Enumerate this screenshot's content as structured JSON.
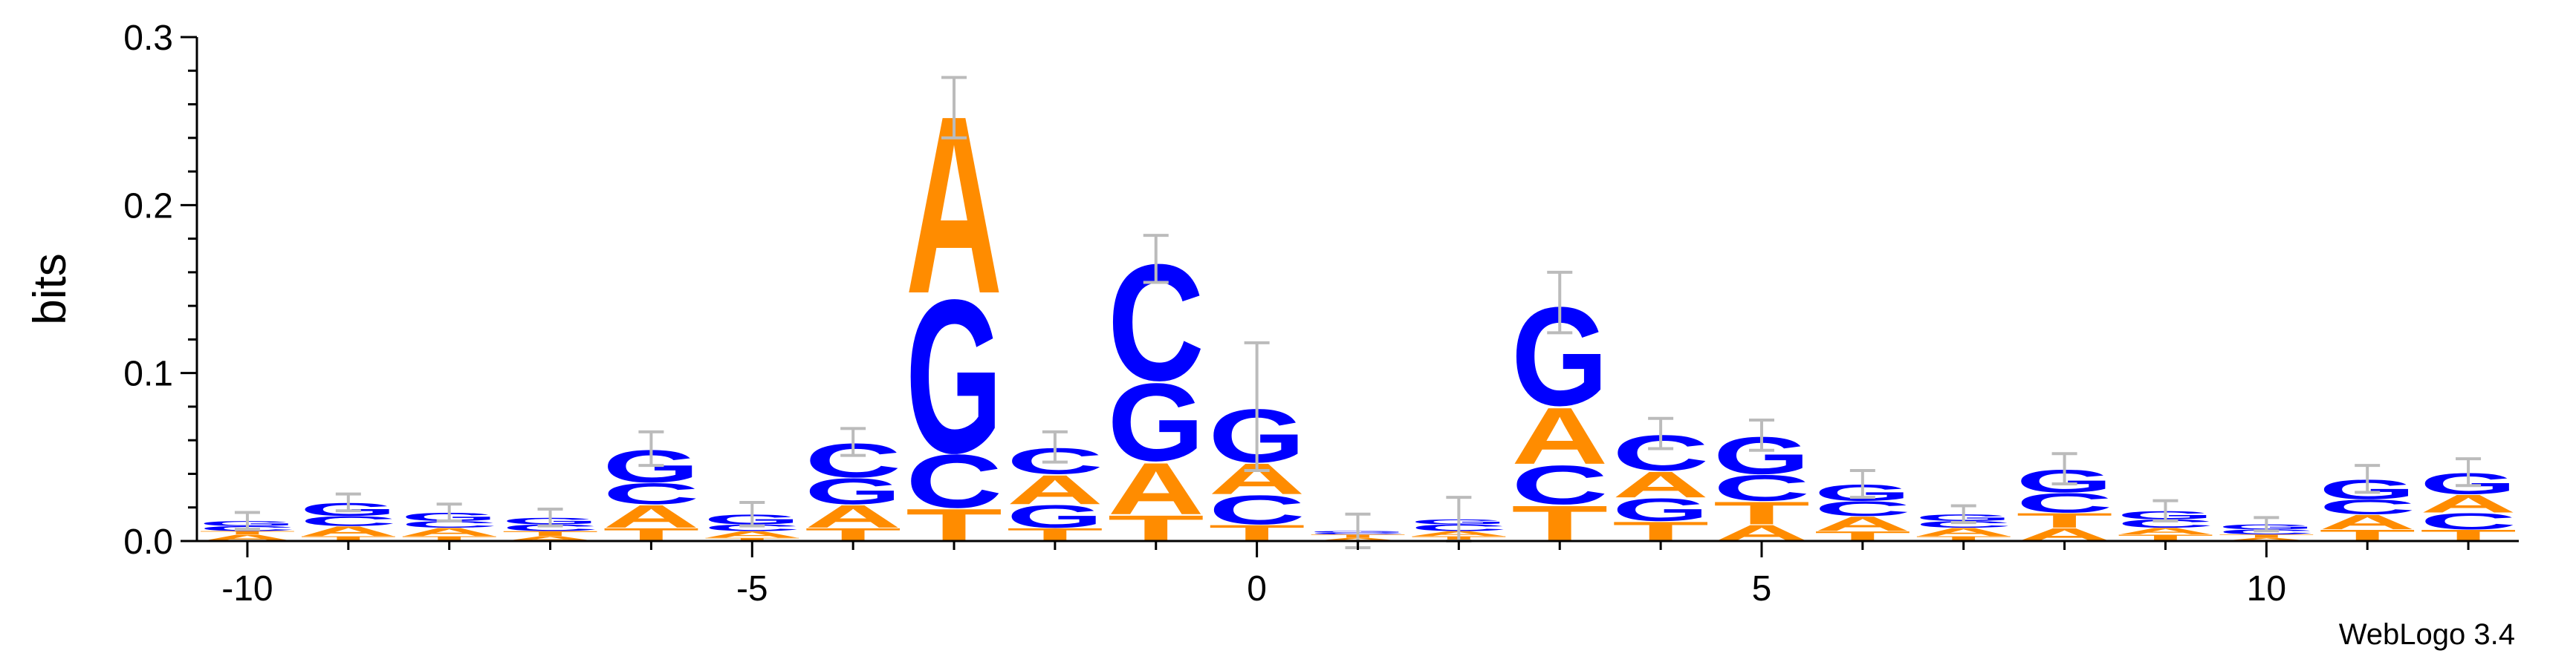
{
  "chart_data": {
    "type": "sequence-logo",
    "ylabel": "bits",
    "credit": "WebLogo 3.4",
    "ylim": [
      0,
      0.3
    ],
    "yticks": [
      0.0,
      0.1,
      0.2,
      0.3
    ],
    "ytick_labels": [
      "0.0",
      "0.1",
      "0.2",
      "0.3"
    ],
    "xlim": [
      -10.5,
      12.5
    ],
    "xticks": [
      -10,
      -5,
      0,
      5,
      10
    ],
    "xtick_labels": [
      "-10",
      "-5",
      "0",
      "5",
      "10"
    ],
    "colors": {
      "A": "#ff8c00",
      "T": "#ff8c00",
      "C": "#0000ff",
      "G": "#0000ff",
      "errorbar": "#bbbbbb",
      "axis": "#000000"
    },
    "positions": [
      {
        "x": -10,
        "stack": [
          [
            "A",
            0.004
          ],
          [
            "T",
            0.002
          ],
          [
            "C",
            0.003
          ],
          [
            "G",
            0.003
          ]
        ],
        "err": 0.005
      },
      {
        "x": -9,
        "stack": [
          [
            "T",
            0.003
          ],
          [
            "A",
            0.006
          ],
          [
            "C",
            0.006
          ],
          [
            "G",
            0.008
          ]
        ],
        "err": 0.005
      },
      {
        "x": -8,
        "stack": [
          [
            "T",
            0.003
          ],
          [
            "A",
            0.005
          ],
          [
            "C",
            0.004
          ],
          [
            "G",
            0.005
          ]
        ],
        "err": 0.005
      },
      {
        "x": -7,
        "stack": [
          [
            "A",
            0.003
          ],
          [
            "T",
            0.003
          ],
          [
            "C",
            0.004
          ],
          [
            "G",
            0.004
          ]
        ],
        "err": 0.005
      },
      {
        "x": -6,
        "stack": [
          [
            "T",
            0.008
          ],
          [
            "A",
            0.014
          ],
          [
            "C",
            0.013
          ],
          [
            "G",
            0.02
          ]
        ],
        "err": 0.01
      },
      {
        "x": -5,
        "stack": [
          [
            "T",
            0.002
          ],
          [
            "A",
            0.004
          ],
          [
            "C",
            0.004
          ],
          [
            "G",
            0.006
          ]
        ],
        "err": 0.007
      },
      {
        "x": -4,
        "stack": [
          [
            "T",
            0.008
          ],
          [
            "A",
            0.014
          ],
          [
            "G",
            0.016
          ],
          [
            "C",
            0.021
          ]
        ],
        "err": 0.008
      },
      {
        "x": -3,
        "stack": [
          [
            "T",
            0.02
          ],
          [
            "C",
            0.033
          ],
          [
            "G",
            0.095
          ],
          [
            "A",
            0.11
          ]
        ],
        "err": 0.018
      },
      {
        "x": -2,
        "stack": [
          [
            "T",
            0.008
          ],
          [
            "G",
            0.014
          ],
          [
            "A",
            0.018
          ],
          [
            "C",
            0.016
          ]
        ],
        "err": 0.009
      },
      {
        "x": -1,
        "stack": [
          [
            "T",
            0.016
          ],
          [
            "A",
            0.032
          ],
          [
            "G",
            0.048
          ],
          [
            "C",
            0.072
          ]
        ],
        "err": 0.014
      },
      {
        "x": 0,
        "stack": [
          [
            "T",
            0.01
          ],
          [
            "C",
            0.018
          ],
          [
            "A",
            0.019
          ],
          [
            "G",
            0.033
          ]
        ],
        "err": 0.038
      },
      {
        "x": 1,
        "stack": [
          [
            "A",
            0.002
          ],
          [
            "T",
            0.002
          ],
          [
            "C",
            0.001
          ],
          [
            "G",
            0.001
          ]
        ],
        "err": 0.01
      },
      {
        "x": 2,
        "stack": [
          [
            "T",
            0.003
          ],
          [
            "A",
            0.003
          ],
          [
            "C",
            0.004
          ],
          [
            "G",
            0.003
          ]
        ],
        "err": 0.013
      },
      {
        "x": 3,
        "stack": [
          [
            "T",
            0.022
          ],
          [
            "C",
            0.024
          ],
          [
            "A",
            0.035
          ],
          [
            "G",
            0.061
          ]
        ],
        "err": 0.018
      },
      {
        "x": 4,
        "stack": [
          [
            "T",
            0.012
          ],
          [
            "G",
            0.014
          ],
          [
            "A",
            0.016
          ],
          [
            "C",
            0.022
          ]
        ],
        "err": 0.009
      },
      {
        "x": 5,
        "stack": [
          [
            "A",
            0.01
          ],
          [
            "T",
            0.014
          ],
          [
            "C",
            0.016
          ],
          [
            "G",
            0.023
          ]
        ],
        "err": 0.009
      },
      {
        "x": 6,
        "stack": [
          [
            "T",
            0.006
          ],
          [
            "A",
            0.009
          ],
          [
            "C",
            0.009
          ],
          [
            "G",
            0.01
          ]
        ],
        "err": 0.008
      },
      {
        "x": 7,
        "stack": [
          [
            "T",
            0.003
          ],
          [
            "A",
            0.005
          ],
          [
            "C",
            0.004
          ],
          [
            "G",
            0.004
          ]
        ],
        "err": 0.005
      },
      {
        "x": 8,
        "stack": [
          [
            "A",
            0.008
          ],
          [
            "T",
            0.009
          ],
          [
            "C",
            0.012
          ],
          [
            "G",
            0.014
          ]
        ],
        "err": 0.009
      },
      {
        "x": 9,
        "stack": [
          [
            "T",
            0.004
          ],
          [
            "A",
            0.004
          ],
          [
            "C",
            0.005
          ],
          [
            "G",
            0.005
          ]
        ],
        "err": 0.006
      },
      {
        "x": 10,
        "stack": [
          [
            "A",
            0.002
          ],
          [
            "T",
            0.002
          ],
          [
            "C",
            0.003
          ],
          [
            "G",
            0.003
          ]
        ],
        "err": 0.004
      },
      {
        "x": 11,
        "stack": [
          [
            "T",
            0.007
          ],
          [
            "A",
            0.009
          ],
          [
            "C",
            0.009
          ],
          [
            "G",
            0.012
          ]
        ],
        "err": 0.008
      },
      {
        "x": 12,
        "stack": [
          [
            "T",
            0.007
          ],
          [
            "C",
            0.01
          ],
          [
            "A",
            0.011
          ],
          [
            "G",
            0.013
          ]
        ],
        "err": 0.008
      }
    ]
  }
}
